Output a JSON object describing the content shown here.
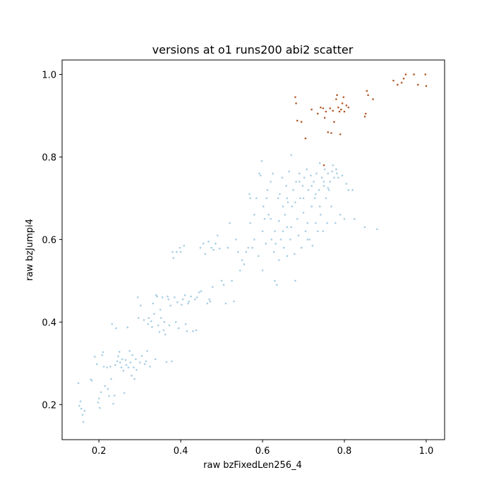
{
  "chart_data": {
    "type": "scatter",
    "title": "versions at o1 runs200 abi2 scatter",
    "xlabel": "raw bzFixedLen256_4",
    "ylabel": "raw bzJumpi4",
    "xlim": [
      0.11,
      1.045
    ],
    "ylim": [
      0.115,
      1.035
    ],
    "xticks": [
      "0.2",
      "0.4",
      "0.6",
      "0.8",
      "1.0"
    ],
    "yticks": [
      "0.2",
      "0.4",
      "0.6",
      "0.8",
      "1.0"
    ],
    "grid": false,
    "legend": "none",
    "colors": {
      "cluster_main": "#a6cee3",
      "cluster_top": "#b15928",
      "axis": "#000000"
    },
    "series": [
      {
        "values": [
          [
            0.15,
            0.252
          ],
          [
            0.152,
            0.197
          ],
          [
            0.155,
            0.208
          ],
          [
            0.157,
            0.19
          ],
          [
            0.16,
            0.175
          ],
          [
            0.162,
            0.158
          ],
          [
            0.165,
            0.185
          ],
          [
            0.18,
            0.261
          ],
          [
            0.183,
            0.258
          ],
          [
            0.19,
            0.316
          ],
          [
            0.195,
            0.298
          ],
          [
            0.198,
            0.205
          ],
          [
            0.2,
            0.215
          ],
          [
            0.202,
            0.192
          ],
          [
            0.205,
            0.23
          ],
          [
            0.208,
            0.32
          ],
          [
            0.21,
            0.327
          ],
          [
            0.212,
            0.292
          ],
          [
            0.215,
            0.245
          ],
          [
            0.22,
            0.29
          ],
          [
            0.222,
            0.238
          ],
          [
            0.225,
            0.221
          ],
          [
            0.228,
            0.292
          ],
          [
            0.23,
            0.262
          ],
          [
            0.232,
            0.395
          ],
          [
            0.235,
            0.202
          ],
          [
            0.238,
            0.222
          ],
          [
            0.24,
            0.296
          ],
          [
            0.242,
            0.385
          ],
          [
            0.245,
            0.305
          ],
          [
            0.247,
            0.317
          ],
          [
            0.25,
            0.328
          ],
          [
            0.252,
            0.302
          ],
          [
            0.255,
            0.29
          ],
          [
            0.257,
            0.31
          ],
          [
            0.26,
            0.282
          ],
          [
            0.262,
            0.228
          ],
          [
            0.265,
            0.308
          ],
          [
            0.267,
            0.296
          ],
          [
            0.27,
            0.387
          ],
          [
            0.272,
            0.29
          ],
          [
            0.275,
            0.33
          ],
          [
            0.277,
            0.302
          ],
          [
            0.28,
            0.27
          ],
          [
            0.282,
            0.32
          ],
          [
            0.285,
            0.29
          ],
          [
            0.287,
            0.262
          ],
          [
            0.29,
            0.31
          ],
          [
            0.292,
            0.284
          ],
          [
            0.295,
            0.46
          ],
          [
            0.297,
            0.41
          ],
          [
            0.3,
            0.302
          ],
          [
            0.302,
            0.44
          ],
          [
            0.305,
            0.318
          ],
          [
            0.31,
            0.405
          ],
          [
            0.312,
            0.298
          ],
          [
            0.315,
            0.305
          ],
          [
            0.318,
            0.33
          ],
          [
            0.32,
            0.395
          ],
          [
            0.322,
            0.41
          ],
          [
            0.325,
            0.292
          ],
          [
            0.328,
            0.402
          ],
          [
            0.33,
            0.388
          ],
          [
            0.332,
            0.445
          ],
          [
            0.335,
            0.42
          ],
          [
            0.338,
            0.31
          ],
          [
            0.34,
            0.465
          ],
          [
            0.342,
            0.462
          ],
          [
            0.345,
            0.392
          ],
          [
            0.348,
            0.376
          ],
          [
            0.35,
            0.43
          ],
          [
            0.352,
            0.41
          ],
          [
            0.355,
            0.46
          ],
          [
            0.358,
            0.38
          ],
          [
            0.36,
            0.4
          ],
          [
            0.362,
            0.37
          ],
          [
            0.365,
            0.303
          ],
          [
            0.368,
            0.462
          ],
          [
            0.37,
            0.455
          ],
          [
            0.372,
            0.392
          ],
          [
            0.375,
            0.44
          ],
          [
            0.378,
            0.305
          ],
          [
            0.38,
            0.57
          ],
          [
            0.382,
            0.555
          ],
          [
            0.385,
            0.46
          ],
          [
            0.388,
            0.4
          ],
          [
            0.39,
            0.57
          ],
          [
            0.392,
            0.448
          ],
          [
            0.395,
            0.385
          ],
          [
            0.398,
            0.58
          ],
          [
            0.4,
            0.57
          ],
          [
            0.402,
            0.442
          ],
          [
            0.405,
            0.455
          ],
          [
            0.408,
            0.585
          ],
          [
            0.41,
            0.465
          ],
          [
            0.412,
            0.395
          ],
          [
            0.415,
            0.378
          ],
          [
            0.418,
            0.445
          ],
          [
            0.42,
            0.45
          ],
          [
            0.425,
            0.462
          ],
          [
            0.43,
            0.378
          ],
          [
            0.435,
            0.455
          ],
          [
            0.438,
            0.38
          ],
          [
            0.44,
            0.46
          ],
          [
            0.445,
            0.472
          ],
          [
            0.448,
            0.58
          ],
          [
            0.45,
            0.475
          ],
          [
            0.455,
            0.59
          ],
          [
            0.46,
            0.565
          ],
          [
            0.465,
            0.445
          ],
          [
            0.468,
            0.595
          ],
          [
            0.47,
            0.455
          ],
          [
            0.472,
            0.45
          ],
          [
            0.475,
            0.58
          ],
          [
            0.478,
            0.485
          ],
          [
            0.48,
            0.575
          ],
          [
            0.485,
            0.59
          ],
          [
            0.49,
            0.61
          ],
          [
            0.495,
            0.578
          ],
          [
            0.5,
            0.5
          ],
          [
            0.505,
            0.49
          ],
          [
            0.51,
            0.445
          ],
          [
            0.515,
            0.58
          ],
          [
            0.52,
            0.64
          ],
          [
            0.525,
            0.5
          ],
          [
            0.53,
            0.45
          ],
          [
            0.535,
            0.6
          ],
          [
            0.54,
            0.57
          ],
          [
            0.545,
            0.525
          ],
          [
            0.55,
            0.55
          ],
          [
            0.555,
            0.54
          ],
          [
            0.56,
            0.57
          ],
          [
            0.565,
            0.58
          ],
          [
            0.568,
            0.71
          ],
          [
            0.57,
            0.7
          ],
          [
            0.575,
            0.58
          ],
          [
            0.58,
            0.6
          ],
          [
            0.585,
            0.7
          ],
          [
            0.59,
            0.56
          ],
          [
            0.592,
            0.76
          ],
          [
            0.595,
            0.755
          ],
          [
            0.598,
            0.79
          ],
          [
            0.6,
            0.525
          ],
          [
            0.602,
            0.68
          ],
          [
            0.605,
            0.65
          ],
          [
            0.608,
            0.59
          ],
          [
            0.61,
            0.7
          ],
          [
            0.612,
            0.72
          ],
          [
            0.615,
            0.66
          ],
          [
            0.62,
            0.74
          ],
          [
            0.622,
            0.6
          ],
          [
            0.625,
            0.76
          ],
          [
            0.628,
            0.57
          ],
          [
            0.63,
            0.5
          ],
          [
            0.632,
            0.59
          ],
          [
            0.635,
            0.49
          ],
          [
            0.638,
            0.7
          ],
          [
            0.64,
            0.645
          ],
          [
            0.642,
            0.71
          ],
          [
            0.645,
            0.6
          ],
          [
            0.648,
            0.75
          ],
          [
            0.65,
            0.62
          ],
          [
            0.652,
            0.58
          ],
          [
            0.655,
            0.66
          ],
          [
            0.658,
            0.73
          ],
          [
            0.66,
            0.56
          ],
          [
            0.662,
            0.69
          ],
          [
            0.665,
            0.765
          ],
          [
            0.668,
            0.6
          ],
          [
            0.67,
            0.805
          ],
          [
            0.672,
            0.68
          ],
          [
            0.675,
            0.72
          ],
          [
            0.678,
            0.565
          ],
          [
            0.68,
            0.5
          ],
          [
            0.682,
            0.74
          ],
          [
            0.685,
            0.65
          ],
          [
            0.688,
            0.61
          ],
          [
            0.69,
            0.76
          ],
          [
            0.692,
            0.7
          ],
          [
            0.695,
            0.58
          ],
          [
            0.698,
            0.73
          ],
          [
            0.7,
            0.665
          ],
          [
            0.702,
            0.75
          ],
          [
            0.705,
            0.62
          ],
          [
            0.708,
            0.77
          ],
          [
            0.71,
            0.64
          ],
          [
            0.712,
            0.72
          ],
          [
            0.715,
            0.6
          ],
          [
            0.718,
            0.755
          ],
          [
            0.72,
            0.68
          ],
          [
            0.722,
            0.585
          ],
          [
            0.725,
            0.74
          ],
          [
            0.728,
            0.7
          ],
          [
            0.73,
            0.64
          ],
          [
            0.732,
            0.76
          ],
          [
            0.735,
            0.62
          ],
          [
            0.738,
            0.72
          ],
          [
            0.74,
            0.785
          ],
          [
            0.742,
            0.66
          ],
          [
            0.745,
            0.75
          ],
          [
            0.748,
            0.62
          ],
          [
            0.75,
            0.73
          ],
          [
            0.752,
            0.77
          ],
          [
            0.755,
            0.7
          ],
          [
            0.758,
            0.64
          ],
          [
            0.76,
            0.76
          ],
          [
            0.762,
            0.72
          ],
          [
            0.765,
            0.74
          ],
          [
            0.768,
            0.68
          ],
          [
            0.77,
            0.765
          ],
          [
            0.772,
            0.78
          ],
          [
            0.775,
            0.75
          ],
          [
            0.778,
            0.64
          ],
          [
            0.78,
            0.77
          ],
          [
            0.782,
            0.76
          ],
          [
            0.785,
            0.75
          ],
          [
            0.79,
            0.66
          ],
          [
            0.795,
            0.755
          ],
          [
            0.8,
            0.65
          ],
          [
            0.805,
            0.735
          ],
          [
            0.81,
            0.72
          ],
          [
            0.82,
            0.72
          ],
          [
            0.825,
            0.65
          ],
          [
            0.85,
            0.63
          ],
          [
            0.88,
            0.625
          ],
          [
            0.62,
            0.65
          ],
          [
            0.64,
            0.55
          ],
          [
            0.66,
            0.63
          ],
          [
            0.7,
            0.7
          ],
          [
            0.71,
            0.6
          ],
          [
            0.72,
            0.73
          ],
          [
            0.73,
            0.71
          ],
          [
            0.74,
            0.68
          ],
          [
            0.75,
            0.74
          ],
          [
            0.76,
            0.725
          ],
          [
            0.68,
            0.69
          ],
          [
            0.69,
            0.74
          ],
          [
            0.67,
            0.63
          ],
          [
            0.66,
            0.7
          ],
          [
            0.65,
            0.68
          ],
          [
            0.63,
            0.62
          ],
          [
            0.6,
            0.62
          ],
          [
            0.58,
            0.66
          ],
          [
            0.57,
            0.64
          ]
        ]
      },
      {
        "values": [
          [
            0.68,
            0.945
          ],
          [
            0.682,
            0.93
          ],
          [
            0.685,
            0.888
          ],
          [
            0.695,
            0.885
          ],
          [
            0.705,
            0.845
          ],
          [
            0.72,
            0.915
          ],
          [
            0.735,
            0.905
          ],
          [
            0.742,
            0.92
          ],
          [
            0.748,
            0.918
          ],
          [
            0.752,
            0.895
          ],
          [
            0.755,
            0.91
          ],
          [
            0.76,
            0.86
          ],
          [
            0.765,
            0.918
          ],
          [
            0.768,
            0.858
          ],
          [
            0.772,
            0.912
          ],
          [
            0.775,
            0.885
          ],
          [
            0.78,
            0.94
          ],
          [
            0.782,
            0.95
          ],
          [
            0.785,
            0.92
          ],
          [
            0.788,
            0.91
          ],
          [
            0.79,
            0.855
          ],
          [
            0.792,
            0.915
          ],
          [
            0.795,
            0.93
          ],
          [
            0.798,
            0.945
          ],
          [
            0.8,
            0.91
          ],
          [
            0.805,
            0.925
          ],
          [
            0.81,
            0.92
          ],
          [
            0.85,
            0.898
          ],
          [
            0.852,
            0.905
          ],
          [
            0.855,
            0.96
          ],
          [
            0.858,
            0.95
          ],
          [
            0.87,
            0.94
          ],
          [
            0.92,
            0.985
          ],
          [
            0.93,
            0.975
          ],
          [
            0.94,
            0.98
          ],
          [
            0.945,
            0.99
          ],
          [
            0.95,
            1.0
          ],
          [
            0.97,
            1.0
          ],
          [
            0.98,
            0.975
          ],
          [
            0.998,
            1.0
          ],
          [
            1.0,
            0.972
          ],
          [
            0.75,
            0.78
          ]
        ]
      }
    ]
  }
}
